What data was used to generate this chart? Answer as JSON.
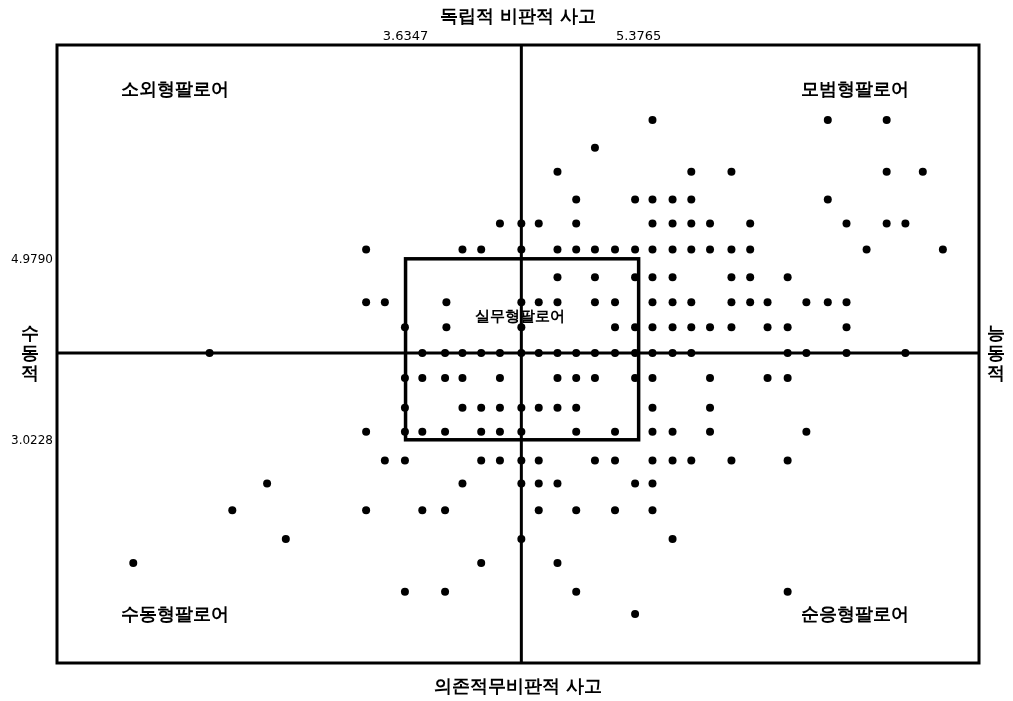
{
  "chart_data": {
    "type": "scatter",
    "title": "독립적 비판적 사고",
    "xlabel": "의존적무비판적 사고",
    "ylabel": "수동적",
    "y2label": "능동적",
    "xlim": [
      1.03,
      7.92
    ],
    "ylim": [
      0.61,
      7.29
    ],
    "xticks": [
      3.6347,
      5.3765
    ],
    "yticks": [
      {
        "value": 4.979,
        "label": "4.9790"
      },
      3.0228
    ],
    "marker": "circle",
    "ref_lines": [
      {
        "axis": "x",
        "value": 4.5,
        "color": "#000000"
      },
      {
        "axis": "y",
        "value": 3.96,
        "color": "#000000"
      }
    ],
    "annotations": [
      "소외형팔로어",
      "모범형팔로어",
      "실무형팔로어",
      "수동형팔로어",
      "순응형팔로어"
    ],
    "series": [
      {
        "color": "#000000",
        "x": [
          5.48,
          6.79,
          7.23,
          5.05,
          4.77,
          5.77,
          6.07,
          7.23,
          7.5,
          4.91,
          5.35,
          5.48,
          5.63,
          5.77,
          6.79,
          4.34,
          4.5,
          4.63,
          4.91,
          5.48,
          5.63,
          5.77,
          5.91,
          6.21,
          6.93,
          7.23,
          7.37,
          3.34,
          4.06,
          4.2,
          4.5,
          4.77,
          4.91,
          5.05,
          5.2,
          5.35,
          5.48,
          5.63,
          5.77,
          5.91,
          6.07,
          6.21,
          7.08,
          7.65,
          4.77,
          5.05,
          5.35,
          5.48,
          5.63,
          6.07,
          6.21,
          6.49,
          3.34,
          3.48,
          3.94,
          4.5,
          4.63,
          4.77,
          5.05,
          5.2,
          5.48,
          5.63,
          5.77,
          6.07,
          6.21,
          6.34,
          6.63,
          6.79,
          6.93,
          3.63,
          3.94,
          4.5,
          5.2,
          5.35,
          5.48,
          5.63,
          5.77,
          5.91,
          6.07,
          6.34,
          6.49,
          6.93,
          2.17,
          3.76,
          3.93,
          4.06,
          4.2,
          4.34,
          4.5,
          4.63,
          4.77,
          4.91,
          5.05,
          5.2,
          5.35,
          5.48,
          5.63,
          5.77,
          6.49,
          6.63,
          6.93,
          7.37,
          3.63,
          3.76,
          3.93,
          4.06,
          4.34,
          4.77,
          4.91,
          5.05,
          5.35,
          5.48,
          5.91,
          6.34,
          6.49,
          3.63,
          4.06,
          4.2,
          4.34,
          4.5,
          4.63,
          4.77,
          4.91,
          5.48,
          5.91,
          3.34,
          3.63,
          3.76,
          3.93,
          4.2,
          4.34,
          4.5,
          4.91,
          5.2,
          5.48,
          5.63,
          5.91,
          6.63,
          3.48,
          3.63,
          4.2,
          4.34,
          4.5,
          4.63,
          5.05,
          5.2,
          5.48,
          5.63,
          5.77,
          6.07,
          6.49,
          2.6,
          4.06,
          4.5,
          4.63,
          4.77,
          5.35,
          5.48,
          2.34,
          3.34,
          3.76,
          3.93,
          4.63,
          4.91,
          5.2,
          5.48,
          2.74,
          4.5,
          5.63,
          1.6,
          4.2,
          4.77,
          3.63,
          3.93,
          4.91,
          6.49,
          5.35
        ],
        "values": [
          6.48,
          6.48,
          6.48,
          6.18,
          5.92,
          5.92,
          5.92,
          5.92,
          5.92,
          5.62,
          5.62,
          5.62,
          5.62,
          5.62,
          5.62,
          5.36,
          5.36,
          5.36,
          5.36,
          5.36,
          5.36,
          5.36,
          5.36,
          5.36,
          5.36,
          5.36,
          5.36,
          5.08,
          5.08,
          5.08,
          5.08,
          5.08,
          5.08,
          5.08,
          5.08,
          5.08,
          5.08,
          5.08,
          5.08,
          5.08,
          5.08,
          5.08,
          5.08,
          5.08,
          4.78,
          4.78,
          4.78,
          4.78,
          4.78,
          4.78,
          4.78,
          4.78,
          4.51,
          4.51,
          4.51,
          4.51,
          4.51,
          4.51,
          4.51,
          4.51,
          4.51,
          4.51,
          4.51,
          4.51,
          4.51,
          4.51,
          4.51,
          4.51,
          4.51,
          4.24,
          4.24,
          4.24,
          4.24,
          4.24,
          4.24,
          4.24,
          4.24,
          4.24,
          4.24,
          4.24,
          4.24,
          4.24,
          3.96,
          3.96,
          3.96,
          3.96,
          3.96,
          3.96,
          3.96,
          3.96,
          3.96,
          3.96,
          3.96,
          3.96,
          3.96,
          3.96,
          3.96,
          3.96,
          3.96,
          3.96,
          3.96,
          3.96,
          3.69,
          3.69,
          3.69,
          3.69,
          3.69,
          3.69,
          3.69,
          3.69,
          3.69,
          3.69,
          3.69,
          3.69,
          3.69,
          3.37,
          3.37,
          3.37,
          3.37,
          3.37,
          3.37,
          3.37,
          3.37,
          3.37,
          3.37,
          3.11,
          3.11,
          3.11,
          3.11,
          3.11,
          3.11,
          3.11,
          3.11,
          3.11,
          3.11,
          3.11,
          3.11,
          3.11,
          2.8,
          2.8,
          2.8,
          2.8,
          2.8,
          2.8,
          2.8,
          2.8,
          2.8,
          2.8,
          2.8,
          2.8,
          2.8,
          2.55,
          2.55,
          2.55,
          2.55,
          2.55,
          2.55,
          2.55,
          2.26,
          2.26,
          2.26,
          2.26,
          2.26,
          2.26,
          2.26,
          2.26,
          1.95,
          1.95,
          1.95,
          1.69,
          1.69,
          1.69,
          1.38,
          1.38,
          1.38,
          1.38,
          1.14
        ]
      }
    ]
  }
}
